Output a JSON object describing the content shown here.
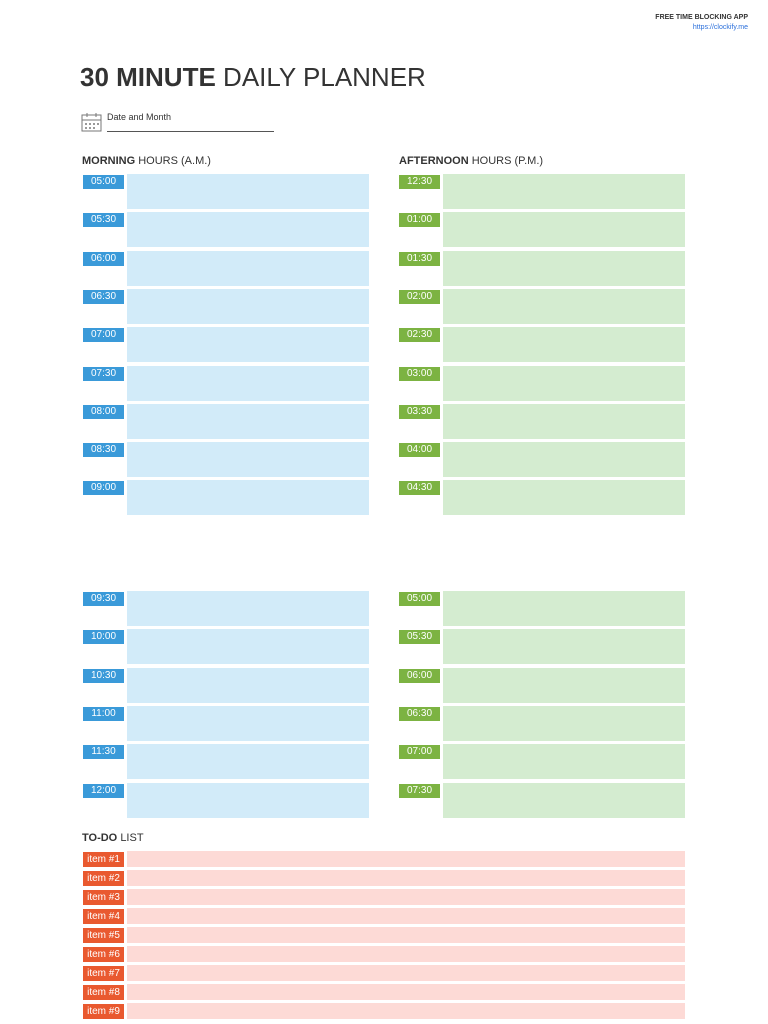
{
  "header": {
    "app_label": "FREE TIME BLOCKING APP",
    "app_url": "https://clockify.me"
  },
  "title": {
    "bold": "30 MINUTE",
    "regular": "DAILY PLANNER"
  },
  "date_field": {
    "label": "Date and Month"
  },
  "morning": {
    "heading_bold": "MORNING",
    "heading_regular": "HOURS (A.M.)",
    "group1": [
      "05:00",
      "05:30",
      "06:00",
      "06:30",
      "07:00",
      "07:30",
      "08:00",
      "08:30",
      "09:00"
    ],
    "group2": [
      "09:30",
      "10:00",
      "10:30",
      "11:00",
      "11:30",
      "12:00"
    ]
  },
  "afternoon": {
    "heading_bold": "AFTERNOON",
    "heading_regular": "HOURS (P.M.)",
    "group1": [
      "12:30",
      "01:00",
      "01:30",
      "02:00",
      "02:30",
      "03:00",
      "03:30",
      "04:00",
      "04:30"
    ],
    "group2": [
      "05:00",
      "05:30",
      "06:00",
      "06:30",
      "07:00",
      "07:30"
    ]
  },
  "todo": {
    "heading_bold": "TO-DO",
    "heading_regular": "LIST",
    "items": [
      "item #1",
      "item #2",
      "item #3",
      "item #4",
      "item #5",
      "item #6",
      "item #7",
      "item #8",
      "item #9"
    ]
  }
}
